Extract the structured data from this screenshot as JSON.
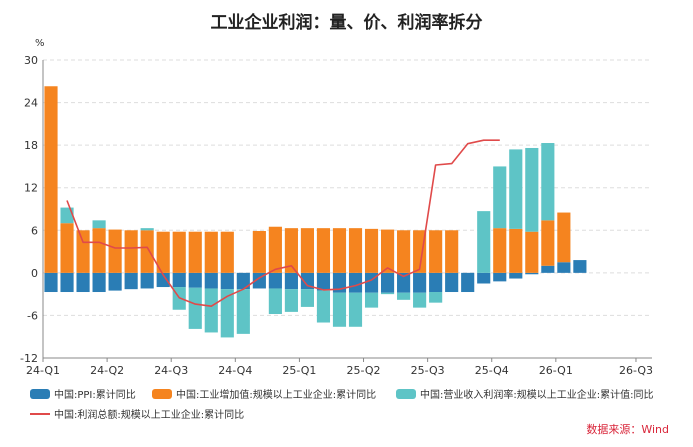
{
  "chart_data": {
    "type": "bar",
    "title": "工业企业利润：量、价、利润率拆分",
    "ylabel": "%",
    "ylim": [
      -12,
      30
    ],
    "yticks": [
      -12,
      -6,
      0,
      6,
      12,
      18,
      24,
      30
    ],
    "grid": true,
    "stacked": true,
    "x_labels": [
      "24-Q1",
      "24-Q2",
      "24-Q3",
      "24-Q4",
      "25-Q1",
      "25-Q2",
      "25-Q3",
      "25-Q4",
      "26-Q1",
      "26-Q3"
    ],
    "x_label_positions": [
      0,
      4,
      8,
      12,
      16,
      20,
      24,
      28,
      32,
      37
    ],
    "categories": [
      "1",
      "2",
      "3",
      "4",
      "5",
      "6",
      "7",
      "8",
      "9",
      "10",
      "11",
      "12",
      "13",
      "14",
      "15",
      "16",
      "17",
      "18",
      "19",
      "20",
      "21",
      "22",
      "23",
      "24",
      "25",
      "26",
      "27",
      "28",
      "29",
      "30",
      "31",
      "32",
      "33",
      "34",
      "35",
      "36",
      "37",
      "38"
    ],
    "series": [
      {
        "name": "中国:PPI:累计同比",
        "color": "#2a7db5",
        "kind": "bar",
        "values": [
          -2.7,
          -2.7,
          -2.7,
          -2.7,
          -2.5,
          -2.3,
          -2.2,
          -2.0,
          -2.0,
          -2.1,
          -2.2,
          -2.3,
          -2.3,
          -2.2,
          -2.2,
          -2.3,
          -2.3,
          -2.5,
          -2.8,
          -2.8,
          -2.8,
          -2.8,
          -2.8,
          -2.8,
          -2.7,
          -2.7,
          -2.7,
          -1.5,
          -1.2,
          -0.8,
          -0.2,
          1.0,
          1.5,
          1.8,
          null,
          null,
          null,
          null
        ]
      },
      {
        "name": "中国:工业增加值:规模以上工业企业:累计同比",
        "color": "#f5841f",
        "kind": "bar",
        "values": [
          26.3,
          7.0,
          6.0,
          6.3,
          6.1,
          6.0,
          6.0,
          5.8,
          5.8,
          5.8,
          5.8,
          5.8,
          null,
          5.9,
          6.5,
          6.3,
          6.3,
          6.3,
          6.3,
          6.3,
          6.2,
          6.1,
          6.0,
          6.0,
          6.0,
          6.0,
          null,
          null,
          6.3,
          6.2,
          5.8,
          6.4,
          7.0,
          null,
          null,
          null,
          null,
          null
        ]
      },
      {
        "name": "中国:营业收入利润率:规模以上工业企业:累计值:同比",
        "color": "#5ec4c6",
        "kind": "bar",
        "values": [
          null,
          2.2,
          null,
          1.1,
          null,
          null,
          0.3,
          null,
          -3.2,
          -5.8,
          -6.2,
          -6.8,
          -6.3,
          null,
          -3.6,
          -3.2,
          -2.5,
          -4.5,
          -4.8,
          -4.8,
          -2.1,
          -0.2,
          -1.0,
          -2.1,
          -1.5,
          null,
          null,
          8.7,
          8.7,
          11.2,
          11.8,
          10.9,
          null,
          null,
          null,
          null,
          null,
          null
        ]
      },
      {
        "name": "中国:利润总额:规模以上工业企业:累计同比",
        "color": "#e04a4a",
        "kind": "line",
        "values": [
          null,
          10.2,
          4.3,
          4.3,
          3.5,
          3.5,
          3.6,
          -0.3,
          -3.5,
          -4.4,
          -4.7,
          -3.3,
          -2.3,
          -0.7,
          0.5,
          1.0,
          -1.8,
          -2.4,
          -2.3,
          -1.8,
          -1.0,
          0.7,
          -0.5,
          0.5,
          15.2,
          15.4,
          18.2,
          18.7,
          18.7,
          null,
          null,
          null,
          null,
          null,
          null,
          null,
          null,
          null
        ]
      }
    ],
    "legend": "bottom"
  },
  "source": "数据来源：Wind"
}
